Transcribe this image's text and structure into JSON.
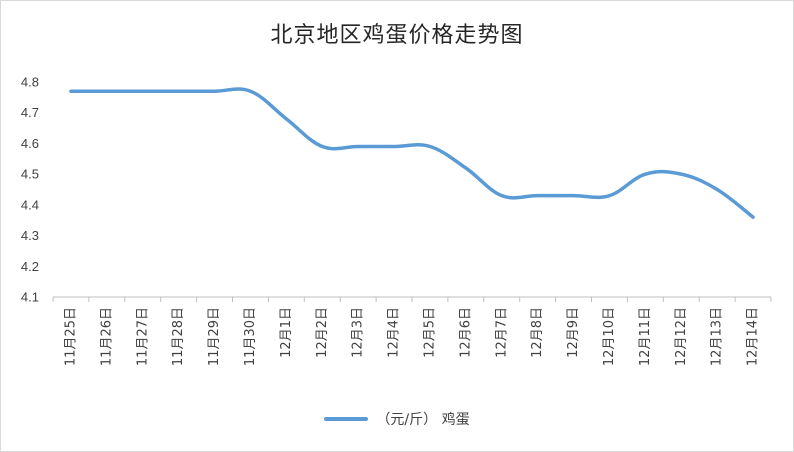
{
  "chart_data": {
    "type": "line",
    "title": "北京地区鸡蛋价格走势图",
    "xlabel": "",
    "ylabel": "",
    "ylim": [
      4.1,
      4.8
    ],
    "yticks": [
      "4.1",
      "4.2",
      "4.3",
      "4.4",
      "4.5",
      "4.6",
      "4.7",
      "4.8"
    ],
    "categories": [
      "11月25日",
      "11月26日",
      "11月27日",
      "11月28日",
      "11月29日",
      "11月30日",
      "12月1日",
      "12月2日",
      "12月3日",
      "12月4日",
      "12月5日",
      "12月6日",
      "12月7日",
      "12月8日",
      "12月9日",
      "12月10日",
      "12月11日",
      "12月12日",
      "12月13日",
      "12月14日"
    ],
    "series": [
      {
        "name": "（元/斤） 鸡蛋",
        "values": [
          4.77,
          4.77,
          4.77,
          4.77,
          4.77,
          4.77,
          4.68,
          4.59,
          4.59,
          4.59,
          4.59,
          4.52,
          4.43,
          4.43,
          4.43,
          4.43,
          4.5,
          4.5,
          4.45,
          4.36
        ],
        "color": "#5b9bd5"
      }
    ],
    "grid": false,
    "legend": "bottom"
  }
}
